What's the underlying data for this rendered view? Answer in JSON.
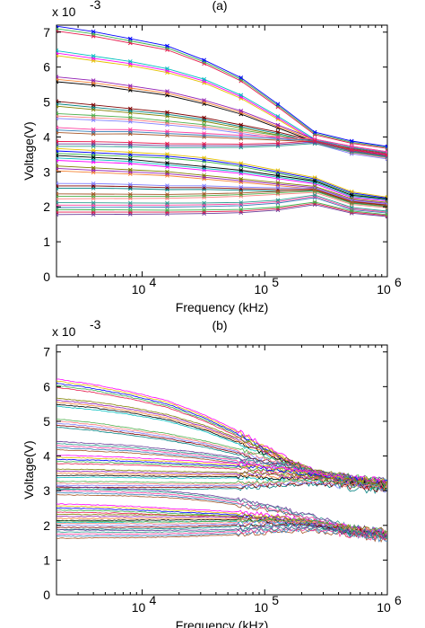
{
  "chart_data": [
    {
      "panel_label": "(a)",
      "type": "line",
      "markers": true,
      "xlabel": "Frequency (kHz)",
      "ylabel": "Voltage(V)",
      "y_multiplier": "x 10",
      "y_exponent": "-3",
      "x_scale": "log",
      "xlim": [
        2000,
        1000000
      ],
      "ylim": [
        0,
        7.2
      ],
      "yticks": [
        "0",
        "1",
        "2",
        "3",
        "4",
        "5",
        "6",
        "7"
      ],
      "xticks": [
        {
          "base": "10",
          "exp": "4"
        },
        {
          "base": "10",
          "exp": "5"
        },
        {
          "base": "10",
          "exp": "6"
        }
      ],
      "x": [
        2000,
        4000,
        8000,
        16000,
        32000,
        64000,
        128000,
        256000,
        512000,
        1000000
      ],
      "series_anchors": [
        [
          7.1,
          6.95,
          6.75,
          6.55,
          6.15,
          5.65,
          4.9,
          4.1,
          3.85,
          3.7
        ],
        [
          6.4,
          6.25,
          6.1,
          5.9,
          5.6,
          5.15,
          4.55,
          3.9,
          3.65,
          3.5
        ],
        [
          5.65,
          5.55,
          5.4,
          5.25,
          5.0,
          4.7,
          4.3,
          3.9,
          3.7,
          3.55
        ],
        [
          4.95,
          4.85,
          4.75,
          4.65,
          4.5,
          4.3,
          4.1,
          3.85,
          3.6,
          3.45
        ],
        [
          4.6,
          4.55,
          4.5,
          4.4,
          4.3,
          4.15,
          4.0,
          3.85,
          3.55,
          3.4
        ],
        [
          4.2,
          4.15,
          4.15,
          4.1,
          4.05,
          4.0,
          3.95,
          3.9,
          3.7,
          3.55
        ],
        [
          3.8,
          3.8,
          3.78,
          3.75,
          3.75,
          3.75,
          3.78,
          3.85,
          3.6,
          3.45
        ],
        [
          3.6,
          3.55,
          3.5,
          3.45,
          3.35,
          3.2,
          3.0,
          2.8,
          2.4,
          2.25
        ],
        [
          3.4,
          3.35,
          3.3,
          3.2,
          3.1,
          3.0,
          2.85,
          2.7,
          2.3,
          2.2
        ],
        [
          3.1,
          3.05,
          3.0,
          2.95,
          2.85,
          2.75,
          2.65,
          2.55,
          2.2,
          2.1
        ],
        [
          2.6,
          2.6,
          2.58,
          2.55,
          2.55,
          2.52,
          2.5,
          2.5,
          2.15,
          2.05
        ],
        [
          2.3,
          2.3,
          2.3,
          2.3,
          2.32,
          2.35,
          2.4,
          2.45,
          2.1,
          2.0
        ],
        [
          2.05,
          2.05,
          2.05,
          2.05,
          2.06,
          2.08,
          2.15,
          2.3,
          1.95,
          1.85
        ],
        [
          1.85,
          1.85,
          1.85,
          1.85,
          1.86,
          1.88,
          1.95,
          2.1,
          1.85,
          1.75
        ]
      ]
    },
    {
      "panel_label": "(b)",
      "type": "line",
      "markers": false,
      "xlabel": "Frequency (kHz)",
      "ylabel": "Voltage(V)",
      "y_multiplier": "x 10",
      "y_exponent": "-3",
      "x_scale": "log",
      "xlim": [
        2000,
        1000000
      ],
      "ylim": [
        0,
        7.2
      ],
      "yticks": [
        "0",
        "1",
        "2",
        "3",
        "4",
        "5",
        "6",
        "7"
      ],
      "xticks": [
        {
          "base": "10",
          "exp": "4"
        },
        {
          "base": "10",
          "exp": "5"
        },
        {
          "base": "10",
          "exp": "6"
        }
      ],
      "x": [
        2000,
        4000,
        8000,
        16000,
        32000,
        64000,
        128000,
        256000,
        512000,
        1000000
      ],
      "series_anchors": [
        [
          6.1,
          5.95,
          5.75,
          5.5,
          5.1,
          4.6,
          4.0,
          3.5,
          3.3,
          3.1
        ],
        [
          5.55,
          5.45,
          5.3,
          5.1,
          4.8,
          4.4,
          3.95,
          3.55,
          3.3,
          3.15
        ],
        [
          4.95,
          4.85,
          4.7,
          4.55,
          4.35,
          4.1,
          3.8,
          3.5,
          3.3,
          3.2
        ],
        [
          4.3,
          4.25,
          4.2,
          4.1,
          4.0,
          3.85,
          3.7,
          3.5,
          3.3,
          3.2
        ],
        [
          3.9,
          3.88,
          3.85,
          3.8,
          3.75,
          3.7,
          3.6,
          3.45,
          3.3,
          3.2
        ],
        [
          3.5,
          3.5,
          3.48,
          3.46,
          3.45,
          3.45,
          3.4,
          3.35,
          3.25,
          3.15
        ],
        [
          3.15,
          3.15,
          3.15,
          3.14,
          3.14,
          3.15,
          3.2,
          3.25,
          3.15,
          3.05
        ],
        [
          3.0,
          2.98,
          2.95,
          2.9,
          2.8,
          2.65,
          2.45,
          2.2,
          1.9,
          1.75
        ],
        [
          2.5,
          2.48,
          2.45,
          2.4,
          2.35,
          2.3,
          2.2,
          2.05,
          1.85,
          1.7
        ],
        [
          2.2,
          2.2,
          2.2,
          2.2,
          2.2,
          2.2,
          2.15,
          2.05,
          1.85,
          1.75
        ],
        [
          2.0,
          2.0,
          2.0,
          2.0,
          2.02,
          2.05,
          2.08,
          2.05,
          1.85,
          1.75
        ],
        [
          1.75,
          1.75,
          1.75,
          1.76,
          1.78,
          1.82,
          1.88,
          1.9,
          1.75,
          1.65
        ]
      ]
    }
  ]
}
